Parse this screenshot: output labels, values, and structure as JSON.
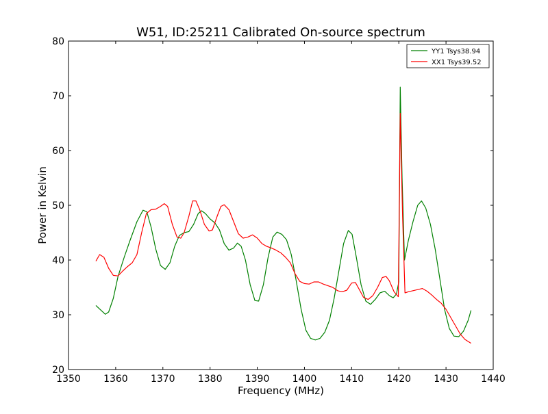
{
  "chart_data": {
    "type": "line",
    "title": "W51, ID:25211 Calibrated On-source spectrum",
    "xlabel": "Frequency (MHz)",
    "ylabel": "Power in Kelvin",
    "xlim": [
      1350,
      1440
    ],
    "ylim": [
      20,
      80
    ],
    "xticks": [
      1350,
      1360,
      1370,
      1380,
      1390,
      1400,
      1410,
      1420,
      1430,
      1440
    ],
    "yticks": [
      20,
      30,
      40,
      50,
      60,
      70,
      80
    ],
    "grid": false,
    "legend_position": "top-right",
    "series": [
      {
        "name": "YY1 Tsys38.94",
        "color": "#008000",
        "points": [
          [
            1355.8,
            31.7
          ],
          [
            1356.8,
            30.9
          ],
          [
            1357.8,
            30.1
          ],
          [
            1358.5,
            30.5
          ],
          [
            1359.5,
            33.0
          ],
          [
            1360.5,
            37.0
          ],
          [
            1361.8,
            40.5
          ],
          [
            1363.0,
            43.5
          ],
          [
            1364.5,
            47.0
          ],
          [
            1365.8,
            49.1
          ],
          [
            1366.6,
            48.8
          ],
          [
            1367.5,
            46.0
          ],
          [
            1368.5,
            42.0
          ],
          [
            1369.5,
            39.0
          ],
          [
            1370.5,
            38.3
          ],
          [
            1371.5,
            39.5
          ],
          [
            1372.5,
            42.5
          ],
          [
            1373.5,
            44.5
          ],
          [
            1374.5,
            45.0
          ],
          [
            1375.5,
            45.2
          ],
          [
            1376.5,
            46.5
          ],
          [
            1377.5,
            48.5
          ],
          [
            1378.2,
            49.0
          ],
          [
            1379.0,
            48.5
          ],
          [
            1380.0,
            47.5
          ],
          [
            1381.0,
            46.8
          ],
          [
            1382.0,
            45.5
          ],
          [
            1383.0,
            43.0
          ],
          [
            1384.0,
            41.8
          ],
          [
            1385.0,
            42.2
          ],
          [
            1385.8,
            43.1
          ],
          [
            1386.6,
            42.5
          ],
          [
            1387.5,
            40.0
          ],
          [
            1388.5,
            35.5
          ],
          [
            1389.5,
            32.6
          ],
          [
            1390.3,
            32.5
          ],
          [
            1391.3,
            35.5
          ],
          [
            1392.3,
            40.5
          ],
          [
            1393.3,
            44.2
          ],
          [
            1394.2,
            45.1
          ],
          [
            1395.2,
            44.7
          ],
          [
            1396.2,
            43.7
          ],
          [
            1397.2,
            41.0
          ],
          [
            1398.2,
            36.5
          ],
          [
            1399.3,
            31.0
          ],
          [
            1400.3,
            27.2
          ],
          [
            1401.3,
            25.7
          ],
          [
            1402.3,
            25.4
          ],
          [
            1403.3,
            25.7
          ],
          [
            1404.3,
            26.8
          ],
          [
            1405.3,
            29.0
          ],
          [
            1406.3,
            33.0
          ],
          [
            1407.3,
            38.0
          ],
          [
            1408.3,
            43.0
          ],
          [
            1409.3,
            45.4
          ],
          [
            1410.1,
            44.7
          ],
          [
            1411.0,
            40.5
          ],
          [
            1412.0,
            35.5
          ],
          [
            1413.0,
            32.5
          ],
          [
            1414.0,
            31.9
          ],
          [
            1415.0,
            32.8
          ],
          [
            1416.0,
            34.0
          ],
          [
            1417.0,
            34.3
          ],
          [
            1418.0,
            33.5
          ],
          [
            1418.8,
            33.1
          ],
          [
            1419.5,
            33.8
          ],
          [
            1420.0,
            36.0
          ],
          [
            1420.3,
            71.6
          ],
          [
            1420.7,
            55.0
          ],
          [
            1421.2,
            40.0
          ],
          [
            1422.0,
            43.5
          ],
          [
            1423.0,
            47.0
          ],
          [
            1424.0,
            50.0
          ],
          [
            1424.8,
            50.8
          ],
          [
            1425.7,
            49.5
          ],
          [
            1426.7,
            46.5
          ],
          [
            1427.7,
            42.0
          ],
          [
            1428.7,
            36.5
          ],
          [
            1429.7,
            31.0
          ],
          [
            1430.7,
            27.5
          ],
          [
            1431.7,
            26.1
          ],
          [
            1432.7,
            26.0
          ],
          [
            1433.7,
            27.0
          ],
          [
            1434.7,
            29.0
          ],
          [
            1435.3,
            30.8
          ]
        ]
      },
      {
        "name": "XX1 Tsys39.52",
        "color": "#ff0000",
        "points": [
          [
            1355.8,
            39.8
          ],
          [
            1356.6,
            41.0
          ],
          [
            1357.5,
            40.5
          ],
          [
            1358.5,
            38.5
          ],
          [
            1359.5,
            37.2
          ],
          [
            1360.5,
            37.1
          ],
          [
            1361.5,
            38.0
          ],
          [
            1362.5,
            38.8
          ],
          [
            1363.5,
            39.5
          ],
          [
            1364.5,
            41.0
          ],
          [
            1365.5,
            45.0
          ],
          [
            1366.5,
            48.5
          ],
          [
            1367.5,
            49.2
          ],
          [
            1368.5,
            49.3
          ],
          [
            1369.5,
            49.8
          ],
          [
            1370.3,
            50.3
          ],
          [
            1371.0,
            49.8
          ],
          [
            1372.0,
            46.5
          ],
          [
            1373.0,
            44.2
          ],
          [
            1373.8,
            44.0
          ],
          [
            1374.5,
            45.0
          ],
          [
            1375.5,
            48.0
          ],
          [
            1376.3,
            50.8
          ],
          [
            1377.0,
            50.8
          ],
          [
            1377.8,
            49.2
          ],
          [
            1378.8,
            46.5
          ],
          [
            1379.8,
            45.3
          ],
          [
            1380.5,
            45.5
          ],
          [
            1381.5,
            48.0
          ],
          [
            1382.3,
            49.8
          ],
          [
            1383.0,
            50.1
          ],
          [
            1384.0,
            49.2
          ],
          [
            1385.0,
            47.0
          ],
          [
            1386.0,
            44.8
          ],
          [
            1387.0,
            44.0
          ],
          [
            1388.0,
            44.2
          ],
          [
            1389.0,
            44.6
          ],
          [
            1390.0,
            44.0
          ],
          [
            1391.0,
            43.0
          ],
          [
            1392.0,
            42.5
          ],
          [
            1393.0,
            42.2
          ],
          [
            1394.0,
            41.8
          ],
          [
            1395.0,
            41.3
          ],
          [
            1396.0,
            40.5
          ],
          [
            1397.0,
            39.5
          ],
          [
            1398.0,
            37.5
          ],
          [
            1399.0,
            36.1
          ],
          [
            1400.0,
            35.7
          ],
          [
            1401.0,
            35.6
          ],
          [
            1402.0,
            36.0
          ],
          [
            1403.0,
            36.0
          ],
          [
            1404.0,
            35.6
          ],
          [
            1405.0,
            35.3
          ],
          [
            1406.0,
            35.0
          ],
          [
            1407.0,
            34.4
          ],
          [
            1408.0,
            34.2
          ],
          [
            1409.0,
            34.5
          ],
          [
            1410.0,
            35.8
          ],
          [
            1410.8,
            35.9
          ],
          [
            1411.5,
            34.8
          ],
          [
            1412.5,
            33.2
          ],
          [
            1413.5,
            32.8
          ],
          [
            1414.5,
            33.5
          ],
          [
            1415.5,
            35.0
          ],
          [
            1416.5,
            36.8
          ],
          [
            1417.3,
            37.0
          ],
          [
            1418.0,
            36.2
          ],
          [
            1419.0,
            34.2
          ],
          [
            1419.9,
            33.3
          ],
          [
            1420.3,
            66.8
          ],
          [
            1420.8,
            48.0
          ],
          [
            1421.3,
            34.0
          ],
          [
            1422.0,
            34.2
          ],
          [
            1423.0,
            34.4
          ],
          [
            1424.0,
            34.6
          ],
          [
            1425.0,
            34.8
          ],
          [
            1426.0,
            34.3
          ],
          [
            1427.0,
            33.6
          ],
          [
            1428.0,
            32.8
          ],
          [
            1429.0,
            32.1
          ],
          [
            1430.0,
            31.0
          ],
          [
            1431.0,
            29.5
          ],
          [
            1432.0,
            28.0
          ],
          [
            1433.0,
            26.5
          ],
          [
            1434.0,
            25.5
          ],
          [
            1435.3,
            24.8
          ]
        ]
      }
    ]
  }
}
